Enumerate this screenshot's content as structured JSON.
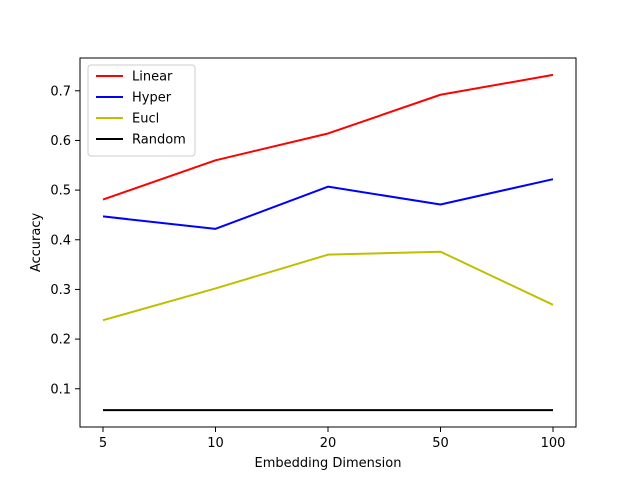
{
  "chart_data": {
    "type": "line",
    "xlabel": "Embedding Dimension",
    "ylabel": "Accuracy",
    "categories": [
      "5",
      "10",
      "20",
      "50",
      "100"
    ],
    "ylim": [
      0.023,
      0.766
    ],
    "yticks": [
      0.1,
      0.2,
      0.3,
      0.4,
      0.5,
      0.6,
      0.7
    ],
    "ytick_labels": [
      "0.1",
      "0.2",
      "0.3",
      "0.4",
      "0.5",
      "0.6",
      "0.7"
    ],
    "grid": false,
    "legend_position": "top-left",
    "series": [
      {
        "name": "Linear",
        "color": "#ff0000",
        "values": [
          0.481,
          0.56,
          0.614,
          0.692,
          0.732
        ]
      },
      {
        "name": "Hyper",
        "color": "#0000ff",
        "values": [
          0.447,
          0.422,
          0.507,
          0.471,
          0.522
        ]
      },
      {
        "name": "Eucl",
        "color": "#bfbf00",
        "values": [
          0.238,
          0.302,
          0.37,
          0.376,
          0.269
        ]
      },
      {
        "name": "Random",
        "color": "#000000",
        "values": [
          0.057,
          0.057,
          0.057,
          0.057,
          0.057
        ]
      }
    ]
  }
}
